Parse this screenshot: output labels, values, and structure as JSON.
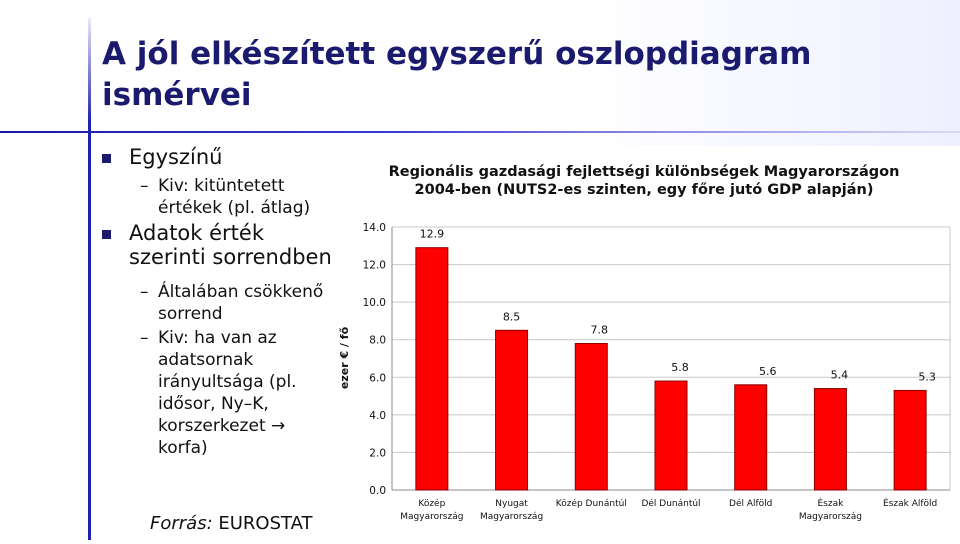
{
  "slide": {
    "title_line1": "A jól elkészített egyszerű oszlopdiagram",
    "title_line2": "ismérvei",
    "bullets": [
      {
        "text": "Egyszínű",
        "subs": [
          "Kiv: kitüntetett értékek (pl. átlag)"
        ]
      },
      {
        "text": "Adatok érték szerinti sorrendben",
        "subs": [
          "Általában csökkenő sorrend",
          "Kiv: ha van az adatsornak irányultsága (pl. idősor, Ny–K, korszerkezet → korfa)"
        ]
      }
    ],
    "source_label": "Forrás:",
    "source_value": "EUROSTAT"
  },
  "colors": {
    "bar": "#ff0000",
    "bar_edge": "#8a0000",
    "title": "#1a1a6e"
  },
  "chart_data": {
    "type": "bar",
    "title_line1": "Regionális gazdasági fejlettségi különbségek Magyarországon",
    "title_line2": "2004-ben (NUTS2-es szinten, egy főre jutó GDP alapján)",
    "ylabel": "ezer € / fő",
    "ylim": [
      0,
      14
    ],
    "yticks": [
      "0.0",
      "2.0",
      "4.0",
      "6.0",
      "8.0",
      "10.0",
      "12.0",
      "14.0"
    ],
    "grid": true,
    "categories": [
      [
        "Közép",
        "Magyarország"
      ],
      [
        "Nyugat",
        "Magyarország"
      ],
      [
        "Közép Dunántúl"
      ],
      [
        "Dél Dunántúl"
      ],
      [
        "Dél Alföld"
      ],
      [
        "Észak",
        "Magyarország"
      ],
      [
        "Észak Alföld"
      ]
    ],
    "values": [
      12.9,
      8.5,
      7.8,
      5.8,
      5.6,
      5.4,
      5.3
    ],
    "labels": [
      "12.9",
      "8.5",
      "7.8",
      "5.8",
      "5.6",
      "5.4",
      "5.3"
    ]
  }
}
